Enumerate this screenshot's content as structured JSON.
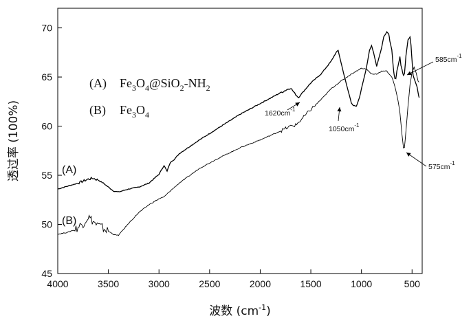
{
  "chart_data": {
    "type": "line",
    "xlabel": "波数 (cm⁻¹)",
    "ylabel": "透过率 (100%)",
    "xlim": [
      4000,
      400
    ],
    "ylim": [
      45,
      72
    ],
    "x_ticks": [
      4000,
      3500,
      3000,
      2500,
      2000,
      1500,
      1000,
      500
    ],
    "y_ticks": [
      45,
      50,
      55,
      60,
      65,
      70
    ],
    "grid": false,
    "legend": {
      "placement": "top-left",
      "entries": [
        {
          "marker": "(A)",
          "label": "Fe3O4@SiO2-NH2"
        },
        {
          "marker": "(B)",
          "label": "Fe3O4"
        }
      ]
    },
    "series": [
      {
        "name": "(A)",
        "color": "#000000",
        "x": [
          4000,
          3900,
          3800,
          3700,
          3650,
          3600,
          3550,
          3500,
          3450,
          3400,
          3300,
          3200,
          3100,
          3000,
          2950,
          2920,
          2900,
          2880,
          2850,
          2800,
          2600,
          2400,
          2200,
          2000,
          1800,
          1700,
          1650,
          1620,
          1600,
          1500,
          1400,
          1300,
          1250,
          1230,
          1200,
          1150,
          1100,
          1080,
          1050,
          1020,
          1000,
          950,
          920,
          900,
          880,
          850,
          800,
          780,
          750,
          730,
          720,
          700,
          690,
          680,
          670,
          660,
          650,
          630,
          620,
          610,
          600,
          590,
          585,
          575,
          560,
          540,
          520,
          510,
          500,
          490,
          470,
          450,
          440,
          430
        ],
        "y": [
          53.6,
          53.9,
          54.2,
          54.6,
          54.7,
          54.5,
          54.2,
          53.8,
          53.4,
          53.3,
          53.6,
          53.8,
          54.2,
          55.1,
          56.0,
          55.4,
          56.0,
          56.4,
          56.6,
          57.2,
          58.6,
          59.9,
          61.2,
          62.3,
          63.4,
          63.9,
          63.2,
          62.9,
          63.2,
          64.4,
          65.3,
          66.6,
          67.5,
          67.7,
          66.4,
          64.3,
          62.4,
          62.1,
          62.0,
          62.9,
          63.8,
          66.0,
          67.7,
          68.2,
          67.5,
          66.1,
          68.0,
          69.1,
          69.6,
          69.4,
          68.7,
          67.8,
          66.5,
          65.4,
          64.9,
          64.8,
          65.6,
          66.5,
          67.1,
          66.2,
          65.8,
          65.3,
          65.2,
          65.3,
          67.2,
          68.8,
          69.1,
          68.2,
          66.6,
          65.2,
          64.6,
          64.0,
          63.4,
          62.9
        ]
      },
      {
        "name": "(B)",
        "color": "#000000",
        "x": [
          4000,
          3900,
          3850,
          3800,
          3750,
          3720,
          3700,
          3680,
          3650,
          3620,
          3600,
          3550,
          3500,
          3450,
          3420,
          3400,
          3350,
          3300,
          3200,
          3100,
          3000,
          2950,
          2900,
          2800,
          2600,
          2400,
          2200,
          2000,
          1800,
          1700,
          1650,
          1600,
          1500,
          1400,
          1300,
          1200,
          1100,
          1000,
          950,
          900,
          850,
          800,
          750,
          700,
          680,
          660,
          640,
          620,
          600,
          585,
          575,
          560,
          540,
          520,
          500,
          480,
          460,
          440,
          430
        ],
        "y": [
          49.0,
          49.2,
          49.4,
          49.7,
          50.1,
          50.5,
          50.8,
          50.6,
          50.3,
          50.0,
          49.9,
          49.6,
          49.3,
          49.0,
          48.9,
          48.9,
          49.5,
          50.1,
          51.2,
          52.0,
          52.6,
          52.8,
          53.3,
          54.2,
          55.7,
          56.8,
          57.8,
          58.6,
          59.5,
          60.0,
          60.1,
          60.6,
          61.7,
          62.7,
          63.8,
          64.6,
          65.3,
          65.9,
          65.8,
          65.3,
          65.3,
          65.6,
          65.6,
          65.0,
          64.4,
          63.6,
          62.7,
          61.4,
          59.2,
          57.8,
          57.8,
          59.5,
          62.1,
          64.2,
          65.5,
          66.0,
          65.4,
          64.6,
          64.5
        ]
      }
    ],
    "annotations": [
      {
        "text": "1620cm",
        "sup": "-1",
        "x": 1620
      },
      {
        "text": "1050cm",
        "sup": "-1",
        "x": 1050
      },
      {
        "text": "585cm",
        "sup": "-1",
        "x": 585
      },
      {
        "text": "575cm",
        "sup": "-1",
        "x": 575
      }
    ]
  }
}
